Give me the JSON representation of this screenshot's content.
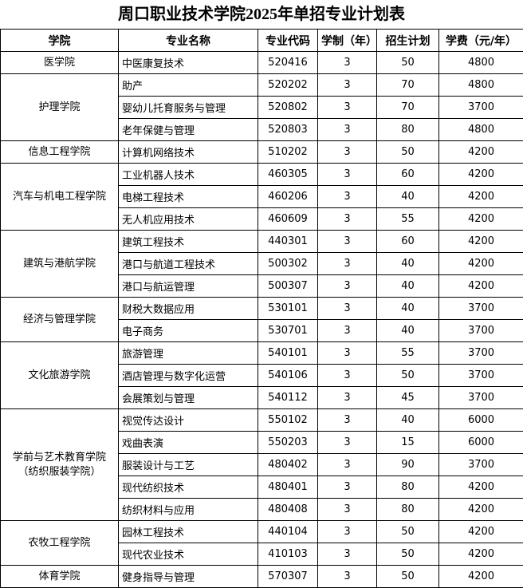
{
  "title": "周口职业技术学院2025年单招专业计划表",
  "table": {
    "headers": [
      "学院",
      "专业名称",
      "专业代码",
      "学制（年）",
      "招生计划",
      "学费（元/年）"
    ],
    "groups": [
      {
        "name": "医学院",
        "rows": [
          [
            "中医康复技术",
            "520416",
            3,
            50,
            4800
          ]
        ]
      },
      {
        "name": "护理学院",
        "rows": [
          [
            "助产",
            "520202",
            3,
            70,
            4800
          ],
          [
            "婴幼儿托育服务与管理",
            "520802",
            3,
            70,
            3700
          ],
          [
            "老年保健与管理",
            "520803",
            3,
            80,
            4800
          ]
        ]
      },
      {
        "name": "信息工程学院",
        "rows": [
          [
            "计算机网络技术",
            "510202",
            3,
            50,
            4200
          ]
        ]
      },
      {
        "name": "汽车与机电工程学院",
        "rows": [
          [
            "工业机器人技术",
            "460305",
            3,
            60,
            4200
          ],
          [
            "电梯工程技术",
            "460206",
            3,
            40,
            4200
          ],
          [
            "无人机应用技术",
            "460609",
            3,
            55,
            4200
          ]
        ]
      },
      {
        "name": "建筑与港航学院",
        "rows": [
          [
            "建筑工程技术",
            "440301",
            3,
            60,
            4200
          ],
          [
            "港口与航道工程技术",
            "500302",
            3,
            40,
            4200
          ],
          [
            "港口与航运管理",
            "500307",
            3,
            40,
            4200
          ]
        ]
      },
      {
        "name": "经济与管理学院",
        "rows": [
          [
            "财税大数据应用",
            "530101",
            3,
            40,
            3700
          ],
          [
            "电子商务",
            "530701",
            3,
            40,
            3700
          ]
        ]
      },
      {
        "name": "文化旅游学院",
        "rows": [
          [
            "旅游管理",
            "540101",
            3,
            55,
            3700
          ],
          [
            "酒店管理与数字化运营",
            "540106",
            3,
            50,
            3700
          ],
          [
            "会展策划与管理",
            "540112",
            3,
            45,
            3700
          ]
        ]
      },
      {
        "name": "学前与艺术教育学院（纺织服装学院）",
        "rows": [
          [
            "视觉传达设计",
            "550102",
            3,
            40,
            6000
          ],
          [
            "戏曲表演",
            "550203",
            3,
            15,
            6000
          ],
          [
            "服装设计与工艺",
            "480402",
            3,
            90,
            3700
          ],
          [
            "现代纺织技术",
            "480401",
            3,
            80,
            4200
          ],
          [
            "纺织材料与应用",
            "480408",
            3,
            80,
            4200
          ]
        ]
      },
      {
        "name": "农牧工程学院",
        "rows": [
          [
            "园林工程技术",
            "440104",
            3,
            50,
            4200
          ],
          [
            "现代农业技术",
            "410103",
            3,
            50,
            4200
          ]
        ]
      },
      {
        "name": "体育学院",
        "rows": [
          [
            "健身指导与管理",
            "570307",
            3,
            50,
            4200
          ]
        ]
      }
    ]
  }
}
